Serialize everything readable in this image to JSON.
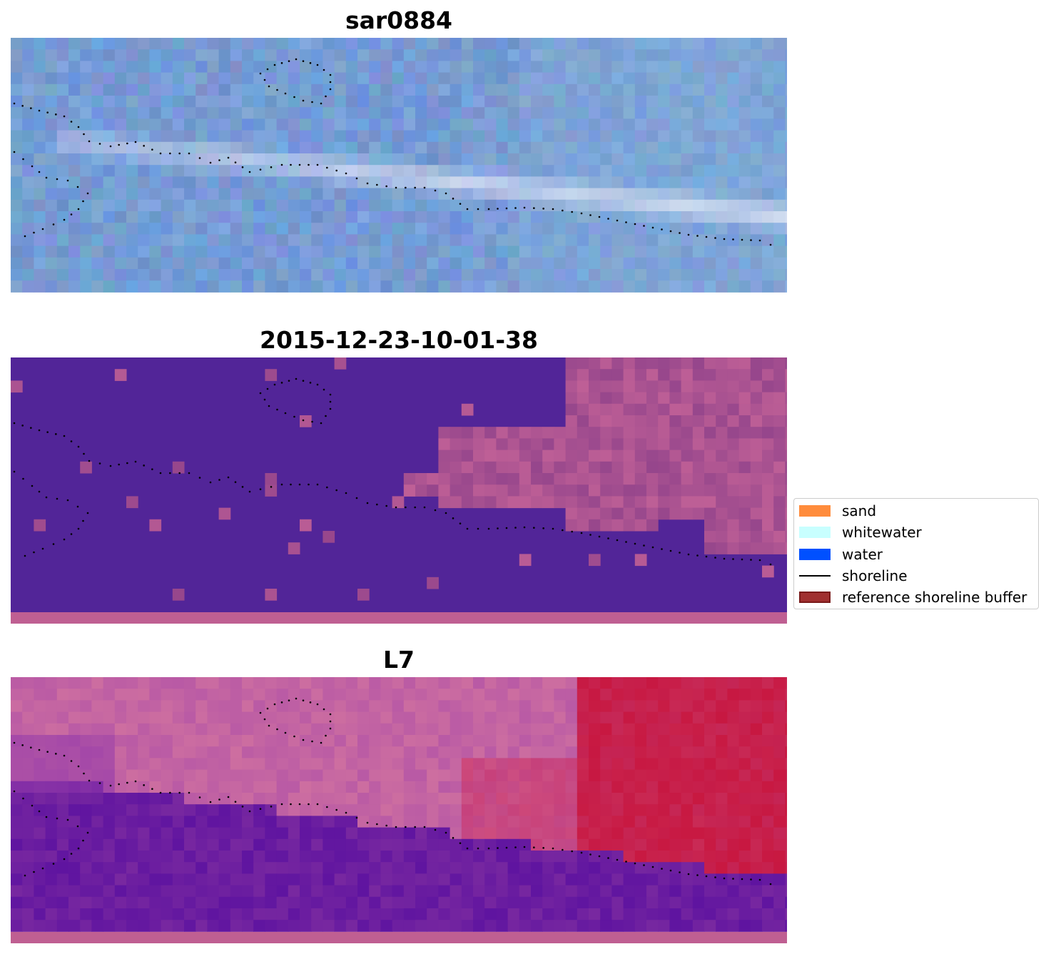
{
  "panels": [
    {
      "title": "sar0884",
      "style": "sar"
    },
    {
      "title": "2015-12-23-10-01-38",
      "style": "classified"
    },
    {
      "title": "L7",
      "style": "l7"
    }
  ],
  "legend": {
    "items": [
      {
        "label": "sand",
        "color": "#FF8C3C",
        "kind": "patch"
      },
      {
        "label": "whitewater",
        "color": "#C8FFFF",
        "kind": "patch"
      },
      {
        "label": "water",
        "color": "#0050FF",
        "kind": "patch"
      },
      {
        "label": "shoreline",
        "color": "#000000",
        "kind": "line"
      },
      {
        "label": "reference shoreline buffer",
        "color": "#A03030",
        "kind": "patch"
      }
    ]
  },
  "colors": {
    "classified_water": "#522598",
    "classified_land": "#B05A92",
    "bottom_strip": "#BF5F92",
    "shoreline_dots": "#000000"
  }
}
